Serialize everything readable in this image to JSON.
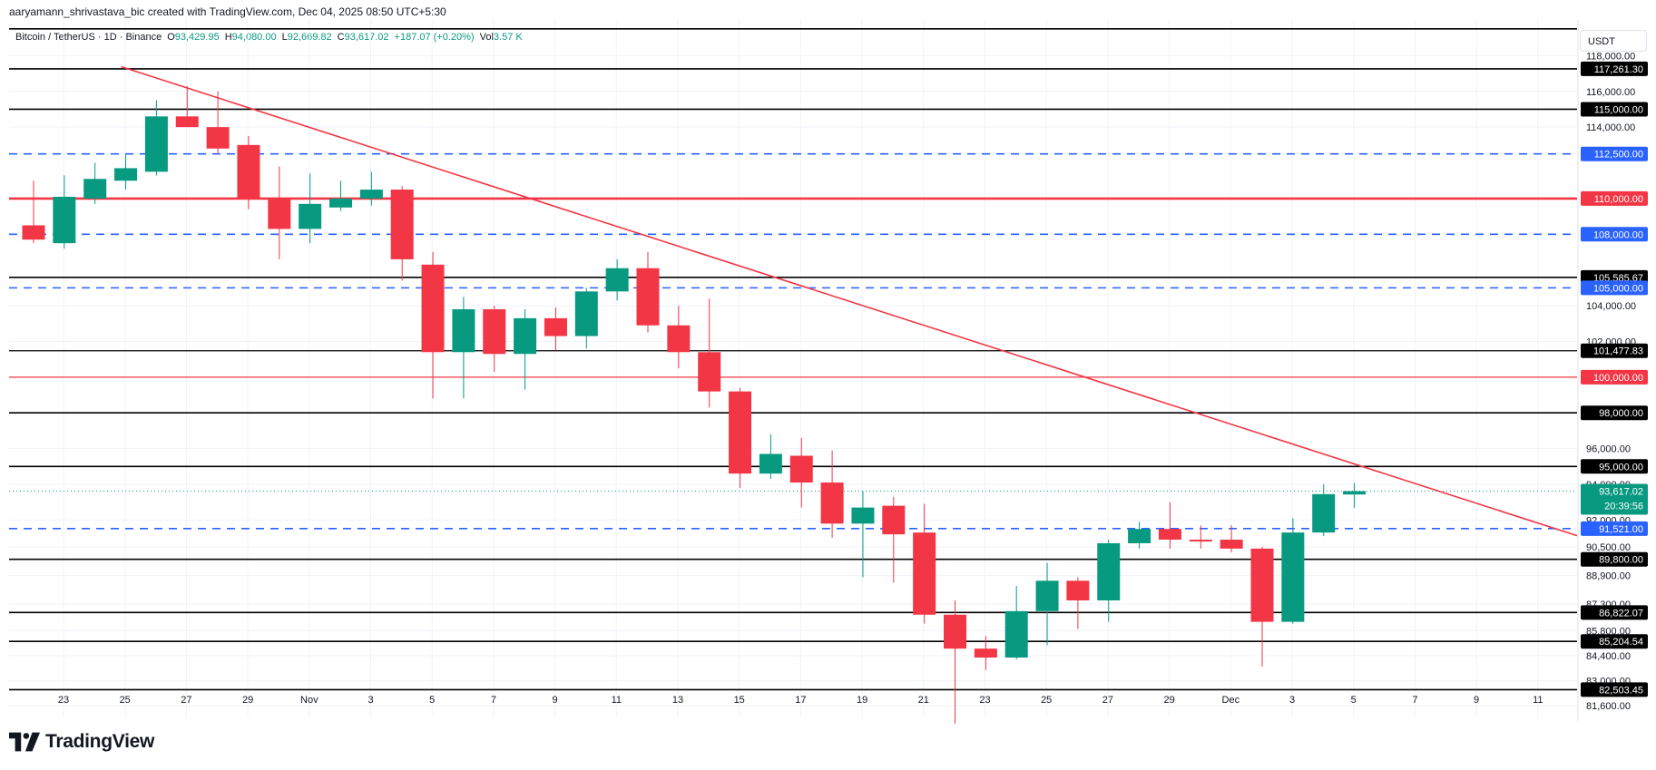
{
  "credit": "aaryamann_shrivastava_bic created with TradingView.com, Dec 04, 2025 08:50 UTC+5:30",
  "legend": {
    "symbol": "Bitcoin / TetherUS · 1D · Binance",
    "open_label": "O",
    "open": "93,429.95",
    "high_label": "H",
    "high": "94,080.00",
    "low_label": "L",
    "low": "92,669.82",
    "close_label": "C",
    "close": "93,617.02",
    "change": "+187.07 (+0.20%)",
    "vol_label": "Vol",
    "vol": "3.57 K"
  },
  "currency": "USDT",
  "brand": {
    "name": "TradingView",
    "logo": "tradingview-logo-icon"
  },
  "colors": {
    "up": "#089981",
    "down": "#f23645",
    "hline": "#000000",
    "dashed": "#2962ff",
    "red_level": "#f23645",
    "trend": "#f23645",
    "grid": "#f0f3fa"
  },
  "chart_data": {
    "type": "candlestick",
    "timeframe": "1D",
    "ylim": [
      81000,
      120000
    ],
    "y_ticks": [
      "118,000.00",
      "116,000.00",
      "114,000.00",
      "112,500.00",
      "104,000.00",
      "102,000.00",
      "96,000.00",
      "94,000.00",
      "92,000.00",
      "90,500.00",
      "88,900.00",
      "87,300.00",
      "85,800.00",
      "84,400.00",
      "83,000.00",
      "81,600.00"
    ],
    "x_ticks": [
      "23",
      "25",
      "27",
      "29",
      "Nov",
      "3",
      "5",
      "7",
      "9",
      "11",
      "13",
      "15",
      "17",
      "19",
      "21",
      "23",
      "25",
      "27",
      "29",
      "Dec",
      "3",
      "5",
      "7",
      "9",
      "11"
    ],
    "candles": [
      {
        "date": "Oct 21",
        "o": 108500,
        "h": 111000,
        "l": 107500,
        "c": 107700
      },
      {
        "date": "Oct 22",
        "o": 107500,
        "h": 111300,
        "l": 107200,
        "c": 110100
      },
      {
        "date": "Oct 23",
        "o": 110000,
        "h": 112000,
        "l": 109700,
        "c": 111100
      },
      {
        "date": "Oct 24",
        "o": 111000,
        "h": 112500,
        "l": 110500,
        "c": 111700
      },
      {
        "date": "Oct 25",
        "o": 111500,
        "h": 115500,
        "l": 111300,
        "c": 114600
      },
      {
        "date": "Oct 26",
        "o": 114600,
        "h": 116300,
        "l": 114000,
        "c": 114000
      },
      {
        "date": "Oct 27",
        "o": 114000,
        "h": 116000,
        "l": 112500,
        "c": 112800
      },
      {
        "date": "Oct 28",
        "o": 113000,
        "h": 113500,
        "l": 109400,
        "c": 110000
      },
      {
        "date": "Oct 29",
        "o": 110000,
        "h": 111800,
        "l": 106600,
        "c": 108300
      },
      {
        "date": "Oct 30",
        "o": 108300,
        "h": 111400,
        "l": 107500,
        "c": 109700
      },
      {
        "date": "Oct 31",
        "o": 109500,
        "h": 111000,
        "l": 109300,
        "c": 110000
      },
      {
        "date": "Nov 01",
        "o": 110000,
        "h": 111500,
        "l": 109600,
        "c": 110500
      },
      {
        "date": "Nov 02",
        "o": 110500,
        "h": 110700,
        "l": 105400,
        "c": 106600
      },
      {
        "date": "Nov 03",
        "o": 106300,
        "h": 107000,
        "l": 98800,
        "c": 101400
      },
      {
        "date": "Nov 04",
        "o": 101400,
        "h": 104500,
        "l": 98800,
        "c": 103800
      },
      {
        "date": "Nov 05",
        "o": 103800,
        "h": 104000,
        "l": 100300,
        "c": 101300
      },
      {
        "date": "Nov 06",
        "o": 101300,
        "h": 103800,
        "l": 99300,
        "c": 103300
      },
      {
        "date": "Nov 07",
        "o": 103300,
        "h": 103900,
        "l": 101500,
        "c": 102300
      },
      {
        "date": "Nov 08",
        "o": 102300,
        "h": 105000,
        "l": 101600,
        "c": 104800
      },
      {
        "date": "Nov 09",
        "o": 104800,
        "h": 106600,
        "l": 104300,
        "c": 106100
      },
      {
        "date": "Nov 10",
        "o": 106100,
        "h": 107000,
        "l": 102500,
        "c": 102900
      },
      {
        "date": "Nov 11",
        "o": 102900,
        "h": 104000,
        "l": 100500,
        "c": 101400
      },
      {
        "date": "Nov 12",
        "o": 101400,
        "h": 104400,
        "l": 98300,
        "c": 99200
      },
      {
        "date": "Nov 13",
        "o": 99200,
        "h": 99400,
        "l": 93800,
        "c": 94600
      },
      {
        "date": "Nov 14",
        "o": 94600,
        "h": 96800,
        "l": 94300,
        "c": 95700
      },
      {
        "date": "Nov 15",
        "o": 95600,
        "h": 96600,
        "l": 92700,
        "c": 94100
      },
      {
        "date": "Nov 16",
        "o": 94100,
        "h": 95900,
        "l": 91000,
        "c": 91800
      },
      {
        "date": "Nov 17",
        "o": 91800,
        "h": 93600,
        "l": 88800,
        "c": 92700
      },
      {
        "date": "Nov 18",
        "o": 92800,
        "h": 93300,
        "l": 88500,
        "c": 91200
      },
      {
        "date": "Nov 19",
        "o": 91300,
        "h": 92900,
        "l": 86200,
        "c": 86700
      },
      {
        "date": "Nov 20",
        "o": 86700,
        "h": 87500,
        "l": 80600,
        "c": 84800
      },
      {
        "date": "Nov 21",
        "o": 84800,
        "h": 85500,
        "l": 83600,
        "c": 84300
      },
      {
        "date": "Nov 22",
        "o": 84300,
        "h": 88300,
        "l": 84200,
        "c": 86900
      },
      {
        "date": "Nov 23",
        "o": 86900,
        "h": 89600,
        "l": 85000,
        "c": 88600
      },
      {
        "date": "Nov 24",
        "o": 88600,
        "h": 88800,
        "l": 85900,
        "c": 87500
      },
      {
        "date": "Nov 25",
        "o": 87500,
        "h": 90900,
        "l": 86300,
        "c": 90700
      },
      {
        "date": "Nov 26",
        "o": 90700,
        "h": 91900,
        "l": 90400,
        "c": 91500
      },
      {
        "date": "Nov 27",
        "o": 91500,
        "h": 93000,
        "l": 90400,
        "c": 90900
      },
      {
        "date": "Nov 28",
        "o": 90900,
        "h": 91700,
        "l": 90400,
        "c": 90800
      },
      {
        "date": "Nov 29",
        "o": 90900,
        "h": 91700,
        "l": 90200,
        "c": 90400
      },
      {
        "date": "Nov 30",
        "o": 90400,
        "h": 90500,
        "l": 83800,
        "c": 86300
      },
      {
        "date": "Dec 01",
        "o": 86300,
        "h": 92100,
        "l": 86200,
        "c": 91300
      },
      {
        "date": "Dec 02",
        "o": 91300,
        "h": 94000,
        "l": 91100,
        "c": 93450
      },
      {
        "date": "Dec 03",
        "o": 93430,
        "h": 94080,
        "l": 92670,
        "c": 93617
      }
    ],
    "horizontal_levels": [
      {
        "value": 119500,
        "style": "solid",
        "color": "#000000",
        "label": ""
      },
      {
        "value": 117261.3,
        "style": "solid",
        "color": "#000000",
        "label": "117,261.30"
      },
      {
        "value": 115000,
        "style": "solid",
        "color": "#000000",
        "label": "115,000.00"
      },
      {
        "value": 112500,
        "style": "dashed",
        "color": "#2962ff",
        "label": "112,500.00"
      },
      {
        "value": 110000,
        "style": "solid-thick",
        "color": "#f23645",
        "label": "110,000.00"
      },
      {
        "value": 108000,
        "style": "dashed",
        "color": "#2962ff",
        "label": "108,000.00"
      },
      {
        "value": 105585.67,
        "style": "solid",
        "color": "#000000",
        "label": "105,585.67"
      },
      {
        "value": 105000,
        "style": "dashed",
        "color": "#2962ff",
        "label": "105,000.00"
      },
      {
        "value": 101477.83,
        "style": "solid-thin",
        "color": "#000000",
        "label": "101,477.83"
      },
      {
        "value": 100000,
        "style": "solid-thin",
        "color": "#f23645",
        "label": "100,000.00"
      },
      {
        "value": 98000,
        "style": "solid",
        "color": "#000000",
        "label": "98,000.00"
      },
      {
        "value": 95000,
        "style": "solid",
        "color": "#000000",
        "label": "95,000.00"
      },
      {
        "value": 91521,
        "style": "dashed",
        "color": "#2962ff",
        "label": "91,521.00"
      },
      {
        "value": 89800,
        "style": "solid",
        "color": "#000000",
        "label": "89,800.00"
      },
      {
        "value": 86822.07,
        "style": "solid",
        "color": "#000000",
        "label": "86,822.07"
      },
      {
        "value": 85204.54,
        "style": "solid",
        "color": "#000000",
        "label": "85,204.54"
      },
      {
        "value": 82503.45,
        "style": "solid",
        "color": "#000000",
        "label": "82,503.45"
      }
    ],
    "current_price": {
      "value": 93617.02,
      "label": "93,617.02",
      "countdown": "20:39:56"
    },
    "trendline": {
      "start": {
        "date": "Oct 24",
        "value": 117300
      },
      "end": {
        "date": "Dec 13",
        "value": 89600
      }
    }
  }
}
